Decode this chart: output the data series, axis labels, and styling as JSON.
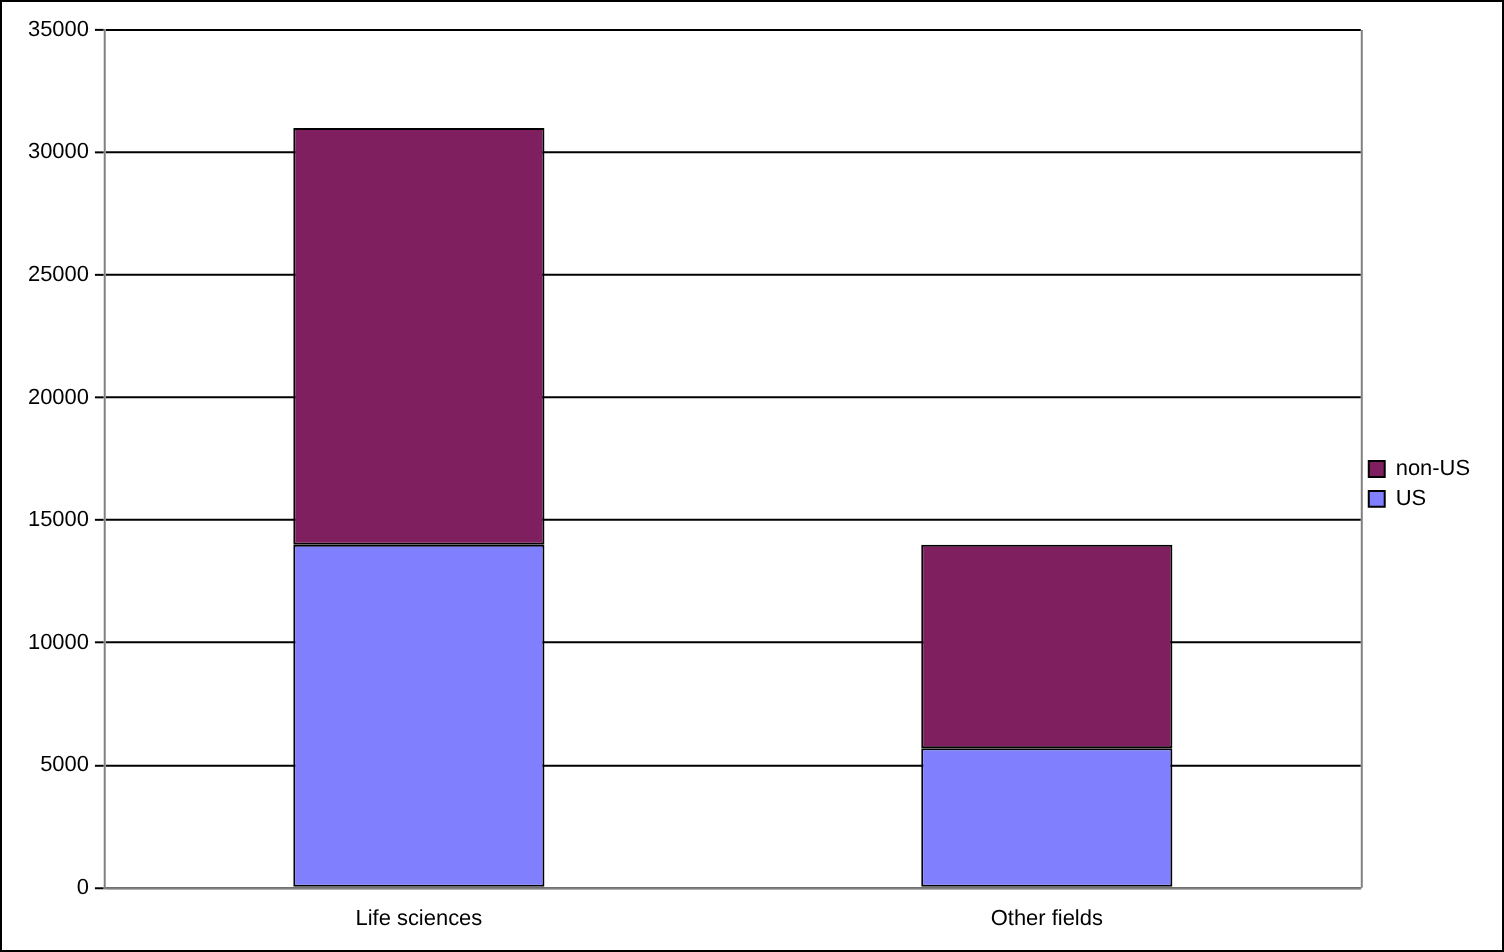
{
  "chart_data": {
    "type": "bar",
    "stacked": true,
    "categories": [
      "Life sciences",
      "Other fields"
    ],
    "series": [
      {
        "name": "US",
        "color": "#8080ff",
        "values": [
          14000,
          5700
        ]
      },
      {
        "name": "non-US",
        "color": "#7f1f5f",
        "values": [
          17000,
          8300
        ]
      }
    ],
    "ylim": [
      0,
      35000
    ],
    "yticks": [
      0,
      5000,
      10000,
      15000,
      20000,
      25000,
      30000,
      35000
    ],
    "grid": "y",
    "legend": "right"
  }
}
